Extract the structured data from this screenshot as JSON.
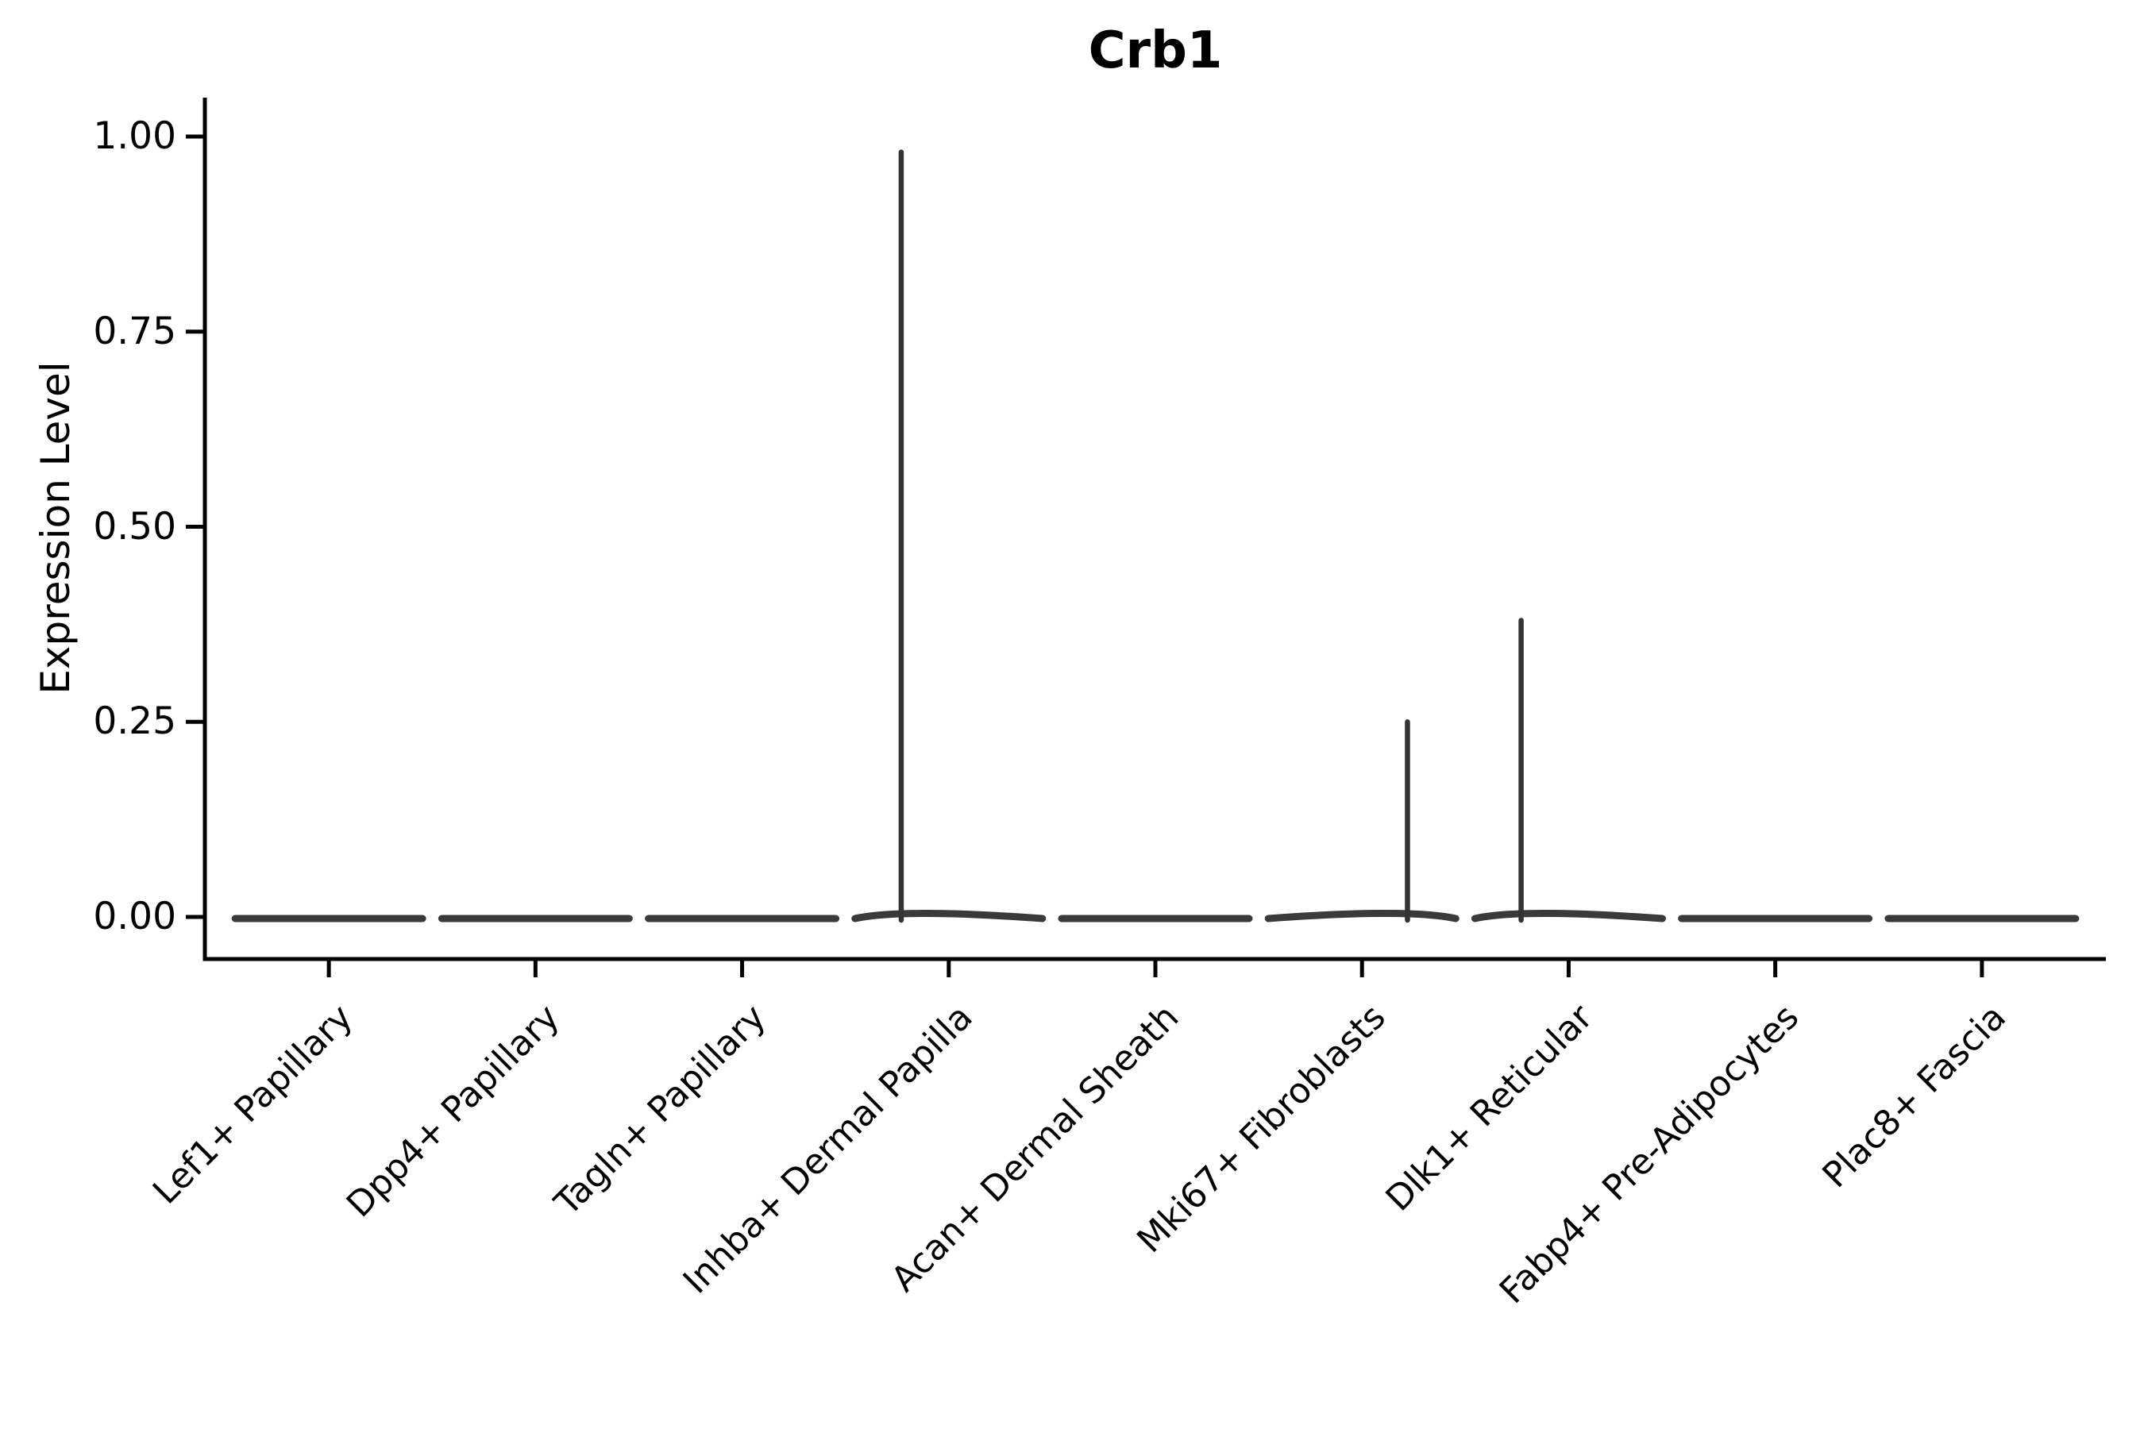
{
  "chart_data": {
    "type": "violin",
    "title": "Crb1",
    "ylabel": "Expression Level",
    "xlabel": "",
    "ylim": [
      0,
      1
    ],
    "grid": false,
    "legend": false,
    "yticks": [
      {
        "value": 0.0,
        "label": "0.00"
      },
      {
        "value": 0.25,
        "label": "0.25"
      },
      {
        "value": 0.5,
        "label": "0.50"
      },
      {
        "value": 0.75,
        "label": "0.75"
      },
      {
        "value": 1.0,
        "label": "1.00"
      }
    ],
    "categories": [
      "Lef1+ Papillary",
      "Dpp4+ Papillary",
      "Tagln+ Papillary",
      "Inhba+ Dermal Papilla",
      "Acan+ Dermal Sheath",
      "Mki67+ Fibroblasts",
      "Dlk1+ Reticular",
      "Fabp4+ Pre-Adipocytes",
      "Plac8+ Fascia"
    ],
    "violins": [
      {
        "category": "Lef1+ Papillary",
        "bulk_value": 0,
        "spike_max": null,
        "spike_offset_frac": 0
      },
      {
        "category": "Dpp4+ Papillary",
        "bulk_value": 0,
        "spike_max": null,
        "spike_offset_frac": 0
      },
      {
        "category": "Tagln+ Papillary",
        "bulk_value": 0,
        "spike_max": null,
        "spike_offset_frac": 0
      },
      {
        "category": "Inhba+ Dermal Papilla",
        "bulk_value": 0,
        "spike_max": 0.98,
        "spike_offset_frac": -0.23
      },
      {
        "category": "Acan+ Dermal Sheath",
        "bulk_value": 0,
        "spike_max": null,
        "spike_offset_frac": 0
      },
      {
        "category": "Mki67+ Fibroblasts",
        "bulk_value": 0,
        "spike_max": 0.25,
        "spike_offset_frac": 0.22
      },
      {
        "category": "Dlk1+ Reticular",
        "bulk_value": 0,
        "spike_max": 0.38,
        "spike_offset_frac": -0.23
      },
      {
        "category": "Fabp4+ Pre-Adipocytes",
        "bulk_value": 0,
        "spike_max": null,
        "spike_offset_frac": 0
      },
      {
        "category": "Plac8+ Fascia",
        "bulk_value": 0,
        "spike_max": null,
        "spike_offset_frac": 0
      }
    ],
    "colors": {
      "violin": "#3a3a3a",
      "spike": "#333333",
      "axis": "#000000",
      "text": "#000000",
      "background": "#ffffff"
    }
  }
}
